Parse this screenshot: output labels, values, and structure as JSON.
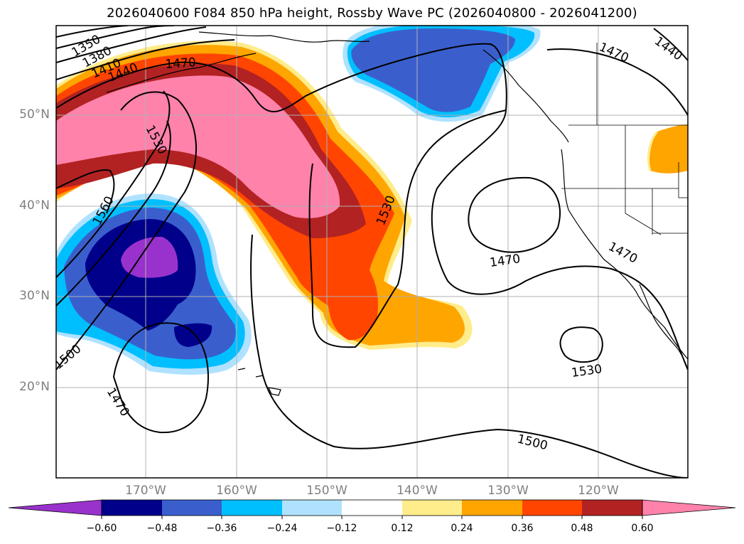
{
  "title": "2026040600 F084 850 hPa height, Rossby Wave PC (2026040800 - 2026041200)",
  "axes": {
    "lat_labels": [
      "50°N",
      "40°N",
      "30°N",
      "20°N"
    ],
    "lon_labels": [
      "170°W",
      "160°W",
      "150°W",
      "140°W",
      "130°W",
      "120°W"
    ]
  },
  "contour_labels": [
    "1350",
    "1380",
    "1410",
    "1440",
    "1470",
    "1530",
    "1560",
    "1500",
    "1470",
    "1530",
    "1470",
    "1470",
    "1530",
    "1500",
    "1470",
    "1440"
  ],
  "colorbar": {
    "ticks": [
      "−0.60",
      "−0.48",
      "−0.36",
      "−0.24",
      "−0.12",
      "0.12",
      "0.24",
      "0.36",
      "0.48",
      "0.60"
    ],
    "colors": [
      "#9932cc",
      "#00008b",
      "#3a5fcd",
      "#00bfff",
      "#b0e2ff",
      "#ffffff",
      "#ffec8b",
      "#ffa500",
      "#ff4500",
      "#b22222",
      "#ff82ab"
    ]
  }
}
